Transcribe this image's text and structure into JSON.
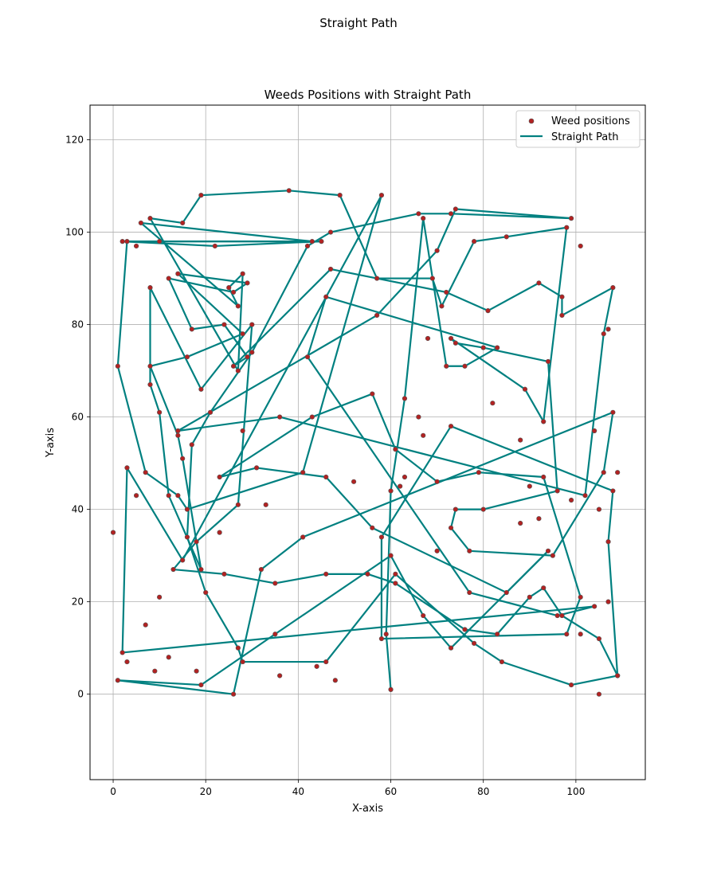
{
  "chart_data": {
    "type": "scatter",
    "suptitle": "Straight Path",
    "title": "Weeds Positions with Straight Path",
    "xlabel": "X-axis",
    "ylabel": "Y-axis",
    "xlim": [
      -5,
      115
    ],
    "ylim": [
      -18.5,
      127.5
    ],
    "xticks": [
      0,
      20,
      40,
      60,
      80,
      100
    ],
    "yticks": [
      0,
      20,
      40,
      60,
      80,
      100,
      120
    ],
    "grid": true,
    "legend": {
      "placement": "top-right",
      "entries": [
        "Weed positions",
        "Straight Path"
      ]
    },
    "colors": {
      "scatter": "#b22222",
      "path": "#008080",
      "grid": "#b0b0b0"
    },
    "path": [
      [
        60,
        1
      ],
      [
        59,
        13
      ],
      [
        60,
        44
      ],
      [
        63,
        64
      ],
      [
        67,
        103
      ],
      [
        72,
        71
      ],
      [
        76,
        71
      ],
      [
        83,
        75
      ],
      [
        46,
        86
      ],
      [
        42,
        73
      ],
      [
        77,
        22
      ],
      [
        96,
        17
      ],
      [
        104,
        19
      ],
      [
        2,
        9
      ],
      [
        3,
        49
      ],
      [
        15,
        29
      ],
      [
        58,
        108
      ],
      [
        41,
        48
      ],
      [
        16,
        40
      ],
      [
        14,
        43
      ],
      [
        7,
        48
      ],
      [
        1,
        71
      ],
      [
        3,
        98
      ],
      [
        45,
        98
      ],
      [
        22,
        97
      ],
      [
        2,
        98
      ],
      [
        10,
        98
      ],
      [
        43,
        98
      ],
      [
        6,
        102
      ],
      [
        27,
        84
      ],
      [
        25,
        88
      ],
      [
        28,
        91
      ],
      [
        27,
        70
      ],
      [
        8,
        103
      ],
      [
        15,
        102
      ],
      [
        19,
        108
      ],
      [
        38,
        109
      ],
      [
        49,
        108
      ],
      [
        57,
        90
      ],
      [
        69,
        90
      ],
      [
        71,
        84
      ],
      [
        78,
        98
      ],
      [
        85,
        99
      ],
      [
        98,
        101
      ],
      [
        93,
        59
      ],
      [
        89,
        66
      ],
      [
        73,
        77
      ],
      [
        74,
        76
      ],
      [
        80,
        75
      ],
      [
        94,
        72
      ],
      [
        96,
        44
      ],
      [
        80,
        40
      ],
      [
        74,
        40
      ],
      [
        73,
        36
      ],
      [
        77,
        31
      ],
      [
        95,
        30
      ],
      [
        106,
        48
      ],
      [
        108,
        61
      ],
      [
        41,
        34
      ],
      [
        32,
        27
      ],
      [
        26,
        0
      ],
      [
        1,
        3
      ],
      [
        19,
        2
      ],
      [
        35,
        13
      ],
      [
        60,
        30
      ],
      [
        67,
        17
      ],
      [
        73,
        10
      ],
      [
        94,
        31
      ],
      [
        85,
        22
      ],
      [
        56,
        36
      ],
      [
        46,
        47
      ],
      [
        31,
        49
      ],
      [
        23,
        47
      ],
      [
        43,
        60
      ],
      [
        56,
        65
      ],
      [
        61,
        53
      ],
      [
        70,
        46
      ],
      [
        79,
        48
      ],
      [
        93,
        47
      ],
      [
        101,
        21
      ],
      [
        98,
        13
      ],
      [
        58,
        12
      ],
      [
        58,
        34
      ],
      [
        73,
        58
      ],
      [
        108,
        44
      ],
      [
        107,
        33
      ],
      [
        109,
        4
      ],
      [
        99,
        2
      ],
      [
        84,
        7
      ],
      [
        78,
        11
      ],
      [
        61,
        26
      ],
      [
        46,
        7
      ],
      [
        28,
        7
      ],
      [
        27,
        10
      ],
      [
        20,
        22
      ],
      [
        16,
        34
      ],
      [
        17,
        54
      ],
      [
        21,
        61
      ],
      [
        30,
        74
      ],
      [
        42,
        97
      ],
      [
        47,
        100
      ],
      [
        66,
        104
      ],
      [
        73,
        104
      ],
      [
        99,
        103
      ],
      [
        74,
        105
      ],
      [
        70,
        96
      ],
      [
        57,
        82
      ],
      [
        14,
        57
      ],
      [
        36,
        60
      ],
      [
        102,
        43
      ],
      [
        106,
        78
      ],
      [
        108,
        88
      ],
      [
        97,
        82
      ],
      [
        97,
        86
      ],
      [
        92,
        89
      ],
      [
        81,
        83
      ],
      [
        72,
        87
      ],
      [
        47,
        92
      ],
      [
        26,
        71
      ],
      [
        29,
        73
      ],
      [
        24,
        80
      ],
      [
        17,
        79
      ],
      [
        12,
        90
      ],
      [
        26,
        87
      ],
      [
        29,
        89
      ],
      [
        14,
        91
      ],
      [
        28,
        78
      ],
      [
        16,
        73
      ],
      [
        8,
        71
      ],
      [
        14,
        56
      ],
      [
        15,
        51
      ],
      [
        19,
        27
      ],
      [
        12,
        43
      ],
      [
        10,
        61
      ],
      [
        8,
        67
      ],
      [
        8,
        88
      ],
      [
        19,
        66
      ],
      [
        30,
        80
      ],
      [
        27,
        41
      ],
      [
        18,
        33
      ],
      [
        13,
        27
      ],
      [
        24,
        26
      ],
      [
        35,
        24
      ],
      [
        46,
        26
      ],
      [
        55,
        26
      ],
      [
        61,
        24
      ],
      [
        76,
        14
      ],
      [
        83,
        13
      ],
      [
        90,
        21
      ],
      [
        93,
        23
      ],
      [
        97,
        17
      ],
      [
        105,
        12
      ],
      [
        109,
        4
      ]
    ],
    "points": [
      [
        60,
        1
      ],
      [
        59,
        13
      ],
      [
        60,
        44
      ],
      [
        63,
        64
      ],
      [
        67,
        103
      ],
      [
        72,
        71
      ],
      [
        76,
        71
      ],
      [
        83,
        75
      ],
      [
        46,
        86
      ],
      [
        42,
        73
      ],
      [
        77,
        22
      ],
      [
        96,
        17
      ],
      [
        104,
        19
      ],
      [
        2,
        9
      ],
      [
        3,
        49
      ],
      [
        15,
        29
      ],
      [
        58,
        108
      ],
      [
        41,
        48
      ],
      [
        16,
        40
      ],
      [
        14,
        43
      ],
      [
        7,
        48
      ],
      [
        1,
        71
      ],
      [
        3,
        98
      ],
      [
        45,
        98
      ],
      [
        22,
        97
      ],
      [
        2,
        98
      ],
      [
        10,
        98
      ],
      [
        43,
        98
      ],
      [
        6,
        102
      ],
      [
        27,
        84
      ],
      [
        25,
        88
      ],
      [
        28,
        91
      ],
      [
        27,
        70
      ],
      [
        8,
        103
      ],
      [
        15,
        102
      ],
      [
        19,
        108
      ],
      [
        38,
        109
      ],
      [
        49,
        108
      ],
      [
        57,
        90
      ],
      [
        69,
        90
      ],
      [
        71,
        84
      ],
      [
        78,
        98
      ],
      [
        85,
        99
      ],
      [
        98,
        101
      ],
      [
        93,
        59
      ],
      [
        89,
        66
      ],
      [
        73,
        77
      ],
      [
        74,
        76
      ],
      [
        80,
        75
      ],
      [
        94,
        72
      ],
      [
        96,
        44
      ],
      [
        80,
        40
      ],
      [
        74,
        40
      ],
      [
        73,
        36
      ],
      [
        77,
        31
      ],
      [
        95,
        30
      ],
      [
        106,
        48
      ],
      [
        108,
        61
      ],
      [
        41,
        34
      ],
      [
        32,
        27
      ],
      [
        26,
        0
      ],
      [
        1,
        3
      ],
      [
        19,
        2
      ],
      [
        35,
        13
      ],
      [
        60,
        30
      ],
      [
        67,
        17
      ],
      [
        73,
        10
      ],
      [
        94,
        31
      ],
      [
        85,
        22
      ],
      [
        56,
        36
      ],
      [
        46,
        47
      ],
      [
        31,
        49
      ],
      [
        23,
        47
      ],
      [
        43,
        60
      ],
      [
        56,
        65
      ],
      [
        61,
        53
      ],
      [
        70,
        46
      ],
      [
        79,
        48
      ],
      [
        93,
        47
      ],
      [
        101,
        21
      ],
      [
        98,
        13
      ],
      [
        58,
        12
      ],
      [
        58,
        34
      ],
      [
        73,
        58
      ],
      [
        108,
        44
      ],
      [
        107,
        33
      ],
      [
        109,
        4
      ],
      [
        99,
        2
      ],
      [
        84,
        7
      ],
      [
        78,
        11
      ],
      [
        61,
        26
      ],
      [
        46,
        7
      ],
      [
        28,
        7
      ],
      [
        27,
        10
      ],
      [
        20,
        22
      ],
      [
        16,
        34
      ],
      [
        17,
        54
      ],
      [
        21,
        61
      ],
      [
        30,
        74
      ],
      [
        42,
        97
      ],
      [
        47,
        100
      ],
      [
        66,
        104
      ],
      [
        73,
        104
      ],
      [
        99,
        103
      ],
      [
        74,
        105
      ],
      [
        70,
        96
      ],
      [
        57,
        82
      ],
      [
        14,
        57
      ],
      [
        36,
        60
      ],
      [
        102,
        43
      ],
      [
        106,
        78
      ],
      [
        108,
        88
      ],
      [
        97,
        82
      ],
      [
        97,
        86
      ],
      [
        92,
        89
      ],
      [
        81,
        83
      ],
      [
        72,
        87
      ],
      [
        47,
        92
      ],
      [
        26,
        71
      ],
      [
        29,
        73
      ],
      [
        24,
        80
      ],
      [
        17,
        79
      ],
      [
        12,
        90
      ],
      [
        26,
        87
      ],
      [
        29,
        89
      ],
      [
        14,
        91
      ],
      [
        28,
        78
      ],
      [
        16,
        73
      ],
      [
        8,
        71
      ],
      [
        14,
        56
      ],
      [
        15,
        51
      ],
      [
        19,
        27
      ],
      [
        12,
        43
      ],
      [
        10,
        61
      ],
      [
        8,
        67
      ],
      [
        8,
        88
      ],
      [
        19,
        66
      ],
      [
        30,
        80
      ],
      [
        27,
        41
      ],
      [
        18,
        33
      ],
      [
        13,
        27
      ],
      [
        24,
        26
      ],
      [
        35,
        24
      ],
      [
        46,
        26
      ],
      [
        55,
        26
      ],
      [
        61,
        24
      ],
      [
        76,
        14
      ],
      [
        83,
        13
      ],
      [
        90,
        21
      ],
      [
        93,
        23
      ],
      [
        97,
        17
      ],
      [
        105,
        12
      ],
      [
        109,
        4
      ],
      [
        0,
        35
      ],
      [
        5,
        43
      ],
      [
        9,
        5
      ],
      [
        12,
        8
      ],
      [
        18,
        5
      ],
      [
        36,
        4
      ],
      [
        48,
        3
      ],
      [
        62,
        45
      ],
      [
        63,
        47
      ],
      [
        66,
        60
      ],
      [
        68,
        77
      ],
      [
        82,
        63
      ],
      [
        88,
        55
      ],
      [
        92,
        38
      ],
      [
        99,
        42
      ],
      [
        101,
        97
      ],
      [
        104,
        57
      ],
      [
        105,
        0
      ],
      [
        107,
        20
      ],
      [
        107,
        79
      ],
      [
        109,
        48
      ],
      [
        5,
        97
      ],
      [
        10,
        21
      ],
      [
        7,
        15
      ],
      [
        3,
        7
      ],
      [
        28,
        57
      ],
      [
        44,
        6
      ],
      [
        52,
        46
      ],
      [
        67,
        56
      ],
      [
        70,
        31
      ],
      [
        88,
        37
      ],
      [
        90,
        45
      ],
      [
        101,
        13
      ],
      [
        105,
        40
      ],
      [
        23,
        35
      ],
      [
        33,
        41
      ]
    ]
  }
}
